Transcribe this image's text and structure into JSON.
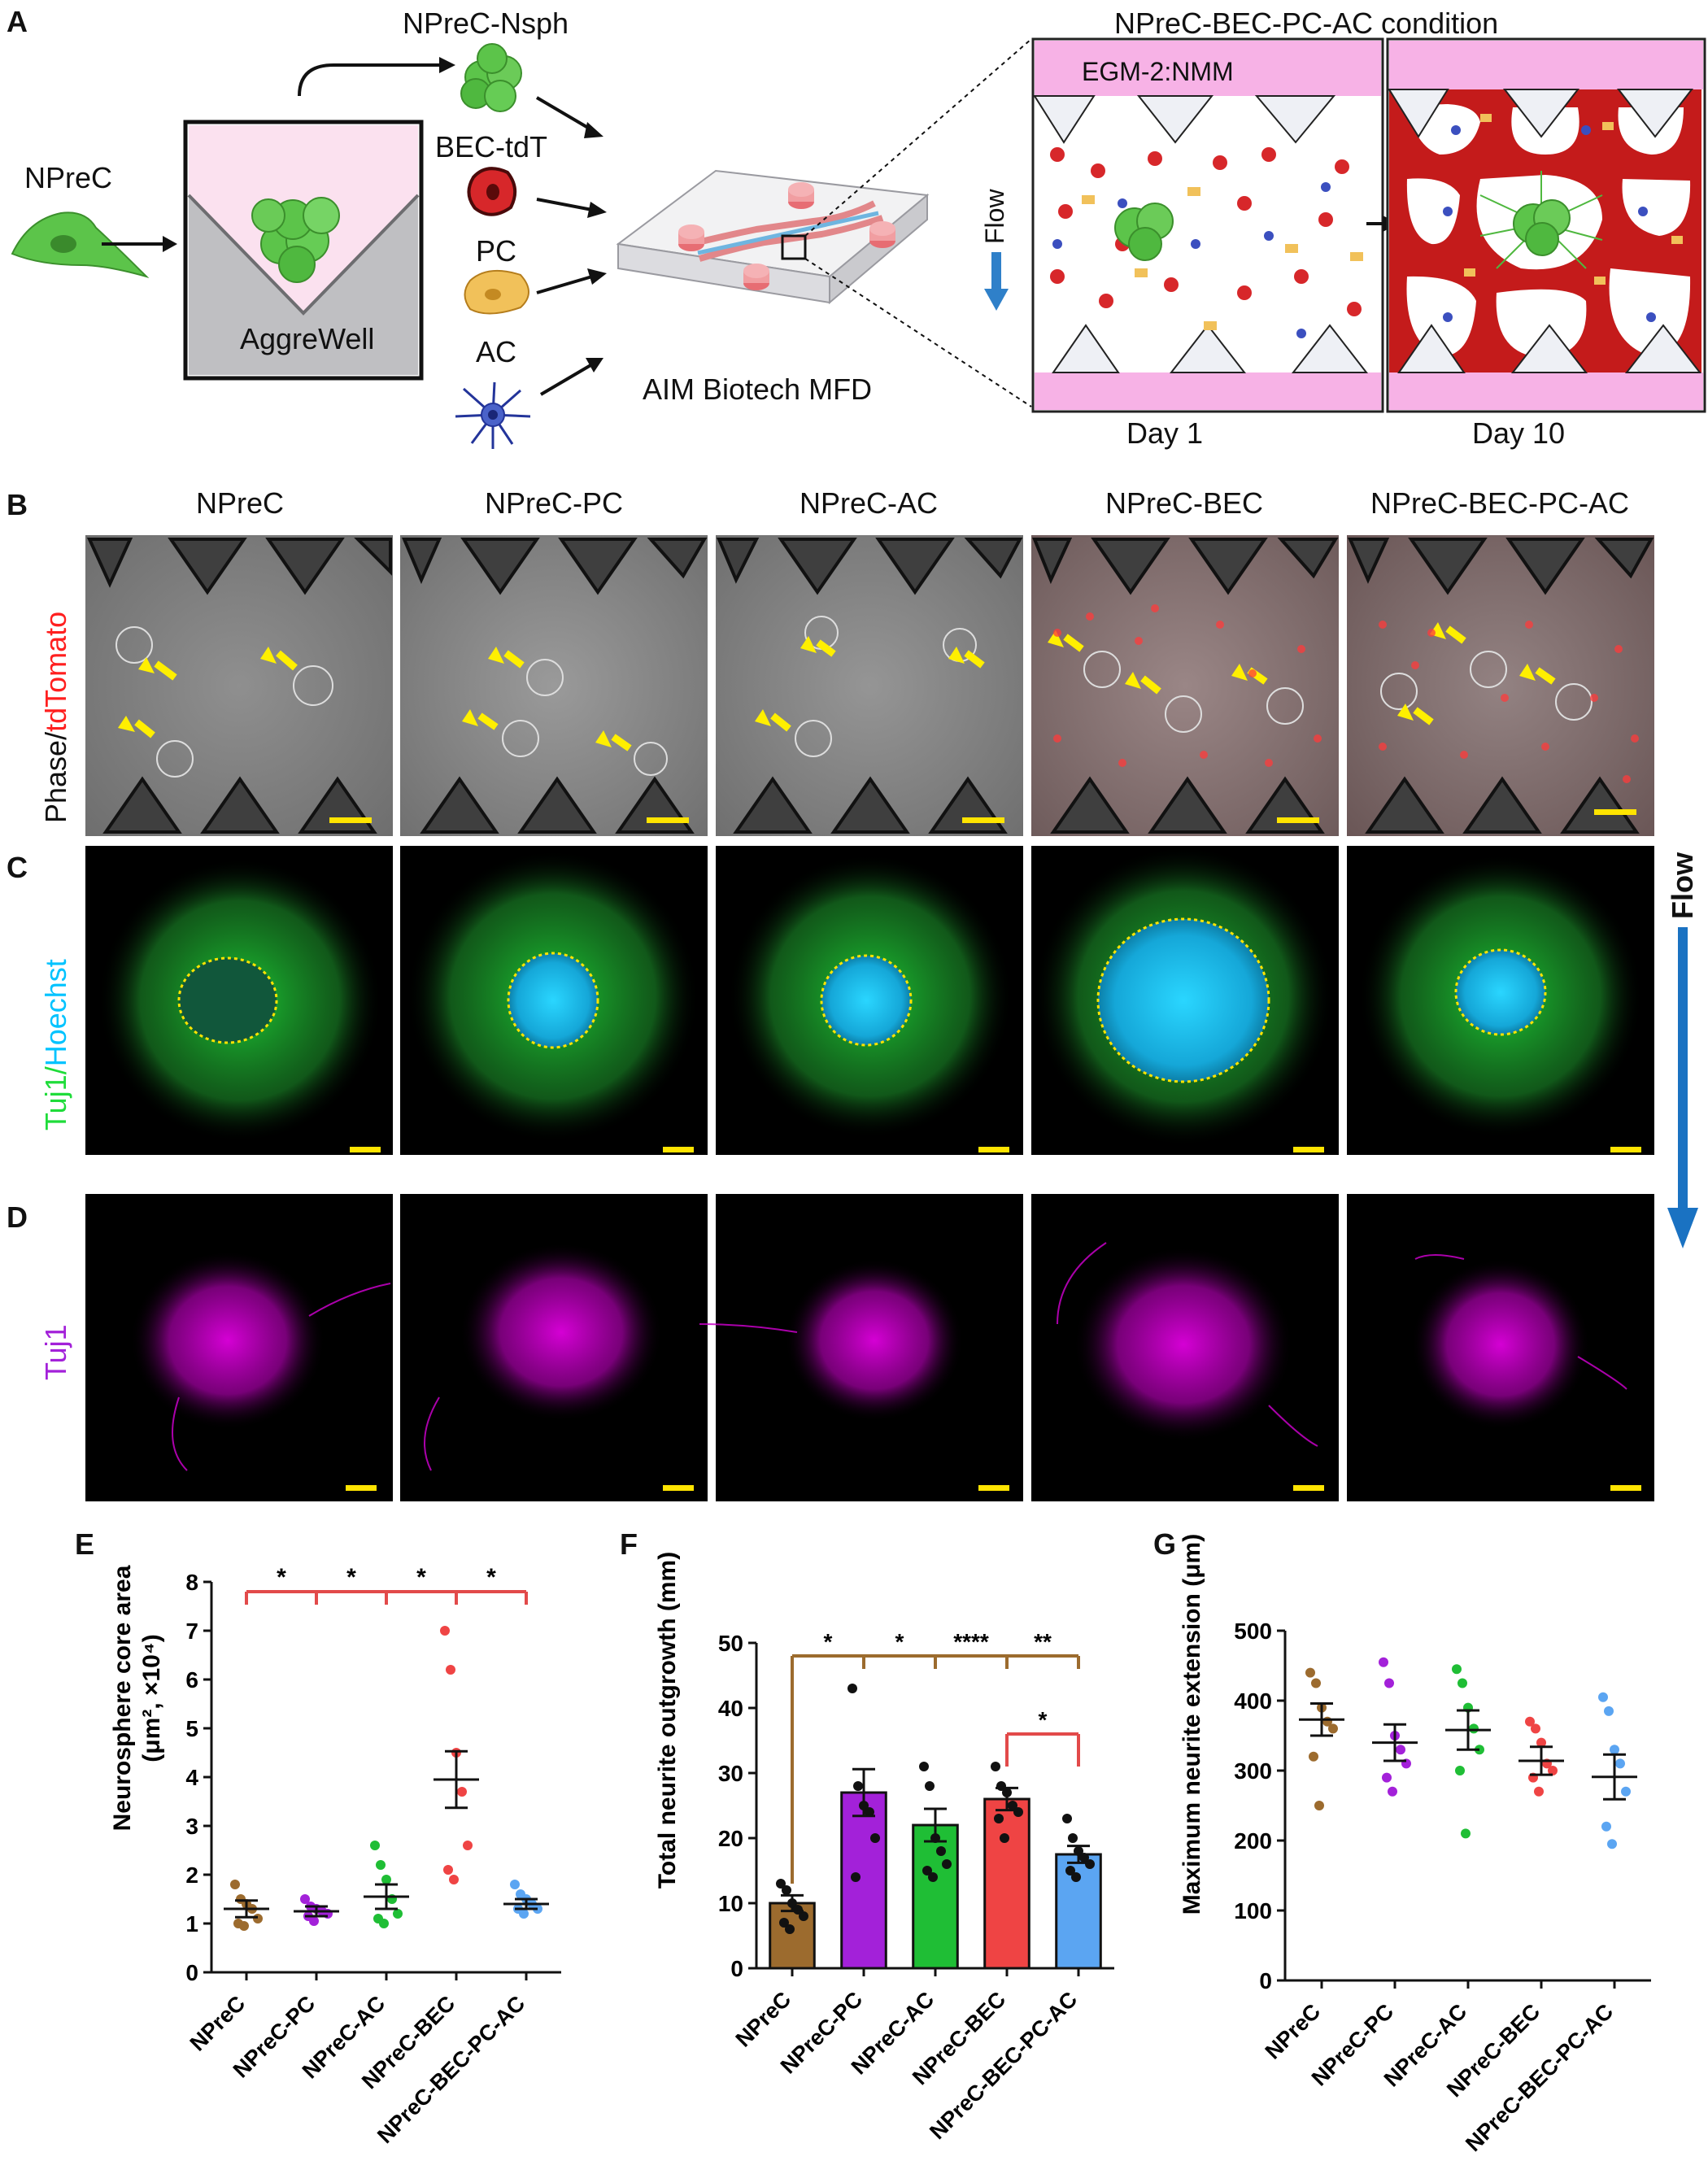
{
  "panel_letters": {
    "a": "A",
    "b": "B",
    "c": "C",
    "d": "D",
    "e": "E",
    "f": "F",
    "g": "G"
  },
  "panel_a": {
    "npre_cell": "NPreC",
    "aggrewell": "AggreWell",
    "nsph": "NPreC-Nsph",
    "bec": "BEC-tdT",
    "pc": "PC",
    "ac": "AC",
    "device": "AIM Biotech MFD",
    "condition_title": "NPreC-BEC-PC-AC condition",
    "medium": "EGM-2:NMM",
    "flow": "Flow",
    "day1": "Day 1",
    "day10": "Day 10"
  },
  "columns": [
    "NPreC",
    "NPreC-PC",
    "NPreC-AC",
    "NPreC-BEC",
    "NPreC-BEC-PC-AC"
  ],
  "row_b_label": {
    "part1": "Phase/",
    "part2": "tdTomato"
  },
  "row_c_label": {
    "part1": "Tuj1/",
    "part2": "Hoechst"
  },
  "row_d_label": "Tuj1",
  "side_flow_label": "Flow",
  "colors": {
    "npre": "#9c6b2e",
    "pc": "#a321d9",
    "ac": "#1fbe35",
    "bec": "#ef4444",
    "bec_pc_ac": "#5ba5f2",
    "sig_line": "#e24a4a",
    "sig_line_f_brown": "#9c6b2e",
    "arrow_yellow": "#ffef00",
    "tdtomato": "#ff1f1f",
    "hoechst": "#00c3ff",
    "tuj1_green": "#1fdc3a",
    "tuj1_magenta": "#c800c8",
    "flow_blue": "#1a72c2"
  },
  "chart_data": [
    {
      "type": "scatter",
      "panel": "E",
      "ylabel": "Neurosphere core area (μm², ×10⁴)",
      "ylabel_line1": "Neurosphere core area",
      "ylabel_line2": "(μm², ×10⁴)",
      "categories": [
        "NPreC",
        "NPreC-PC",
        "NPreC-AC",
        "NPreC-BEC",
        "NPreC-BEC-PC-AC"
      ],
      "ylim": [
        0,
        8
      ],
      "yticks": [
        "0",
        "1",
        "2",
        "3",
        "4",
        "5",
        "6",
        "7",
        "8"
      ],
      "means": [
        1.3,
        1.25,
        1.55,
        3.95,
        1.4
      ],
      "sem": [
        0.17,
        0.1,
        0.25,
        0.58,
        0.1
      ],
      "points": [
        [
          1.8,
          1.5,
          1.4,
          1.3,
          1.1,
          1.0,
          0.95
        ],
        [
          1.5,
          1.35,
          1.3,
          1.25,
          1.2,
          1.15,
          1.05
        ],
        [
          2.6,
          2.2,
          1.9,
          1.5,
          1.2,
          1.1,
          1.0
        ],
        [
          7.0,
          6.2,
          4.5,
          3.7,
          2.6,
          2.1,
          1.9
        ],
        [
          1.8,
          1.6,
          1.5,
          1.4,
          1.3,
          1.3,
          1.2
        ]
      ],
      "significance": [
        "*",
        "*",
        "*",
        "*"
      ]
    },
    {
      "type": "bar",
      "panel": "F",
      "ylabel": "Total neurite outgrowth (mm)",
      "categories": [
        "NPreC",
        "NPreC-PC",
        "NPreC-AC",
        "NPreC-BEC",
        "NPreC-BEC-PC-AC"
      ],
      "ylim": [
        0,
        50
      ],
      "yticks": [
        "0",
        "10",
        "20",
        "30",
        "40",
        "50"
      ],
      "values": [
        10,
        27,
        22,
        26,
        17.5
      ],
      "sem": [
        1.2,
        3.6,
        2.5,
        1.7,
        1.3
      ],
      "points": [
        [
          13,
          12,
          10,
          9,
          8,
          7,
          6
        ],
        [
          43,
          28,
          25,
          24,
          20,
          14
        ],
        [
          31,
          28,
          20,
          18,
          16,
          15,
          14
        ],
        [
          31,
          28,
          27,
          25,
          24,
          23,
          20
        ],
        [
          23,
          20,
          18,
          17,
          16,
          15,
          14
        ]
      ],
      "significance": [
        "*",
        "*",
        "****",
        "**"
      ],
      "significance_red": "*"
    },
    {
      "type": "scatter",
      "panel": "G",
      "ylabel": "Maximum neurite extension (μm)",
      "categories": [
        "NPreC",
        "NPreC-PC",
        "NPreC-AC",
        "NPreC-BEC",
        "NPreC-BEC-PC-AC"
      ],
      "ylim": [
        0,
        500
      ],
      "yticks": [
        "0",
        "100",
        "200",
        "300",
        "400",
        "500"
      ],
      "means": [
        373,
        340,
        358,
        314,
        291
      ],
      "sem": [
        23,
        26,
        28,
        20,
        32
      ],
      "points": [
        [
          440,
          425,
          390,
          370,
          360,
          320,
          250
        ],
        [
          455,
          425,
          350,
          330,
          310,
          290,
          270
        ],
        [
          445,
          425,
          390,
          360,
          330,
          300,
          210
        ],
        [
          370,
          360,
          340,
          310,
          300,
          290,
          270
        ],
        [
          405,
          385,
          330,
          310,
          270,
          220,
          195
        ]
      ]
    }
  ]
}
